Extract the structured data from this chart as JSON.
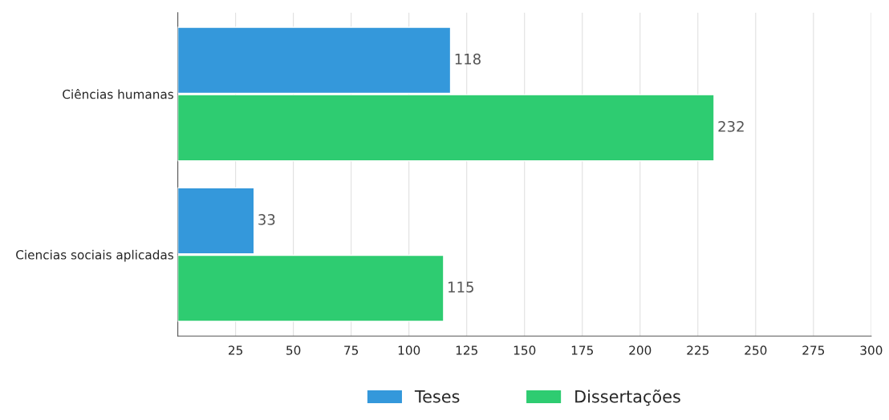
{
  "chart_data": {
    "type": "bar",
    "orientation": "horizontal",
    "categories": [
      "Ciências humanas",
      "Ciencias sociais aplicadas"
    ],
    "series": [
      {
        "name": "Teses",
        "color": "#3498db",
        "values": [
          118,
          33
        ]
      },
      {
        "name": "Dissertações",
        "color": "#2ecc71",
        "values": [
          232,
          115
        ]
      }
    ],
    "xlim": [
      0,
      300
    ],
    "xticks": [
      {
        "value": 0,
        "label": null
      },
      25,
      50,
      75,
      100,
      125,
      150,
      175,
      200,
      225,
      250,
      275,
      300
    ],
    "grid": "x",
    "legend": "bottom",
    "data_labels": true
  }
}
